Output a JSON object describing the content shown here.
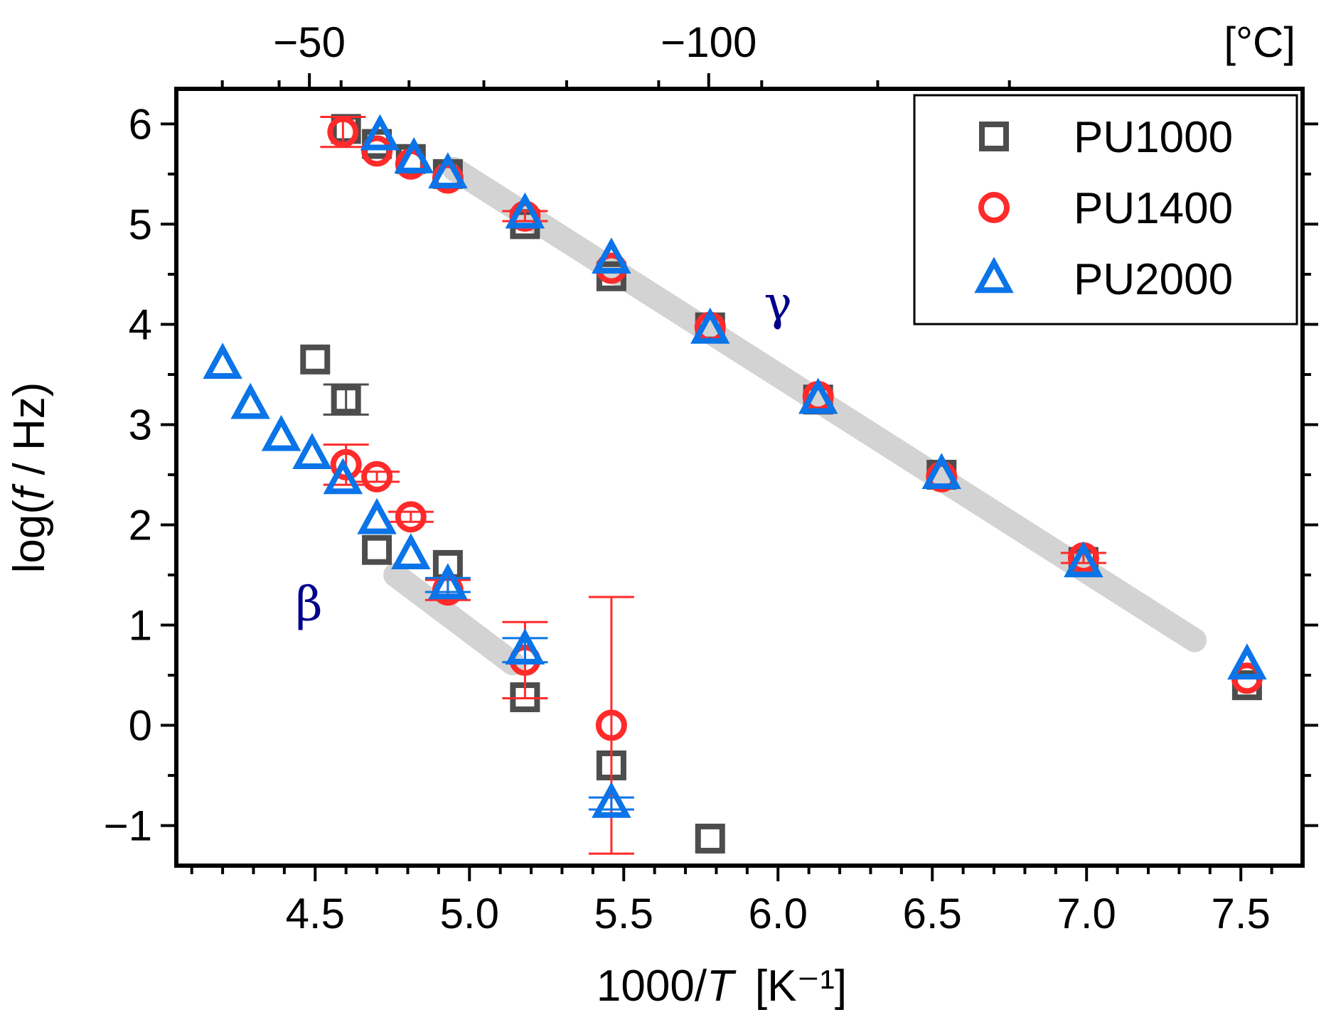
{
  "chart_data": {
    "type": "scatter",
    "xlabel": "1000/T  [K⁻¹]",
    "xlabel_parts": {
      "prefix": "1000/",
      "var": "T",
      "unit": "[K⁻¹]"
    },
    "ylabel": "log(f / Hz)",
    "ylabel_parts": {
      "prefix": "log(",
      "var": "f",
      "suffix": " / Hz)"
    },
    "top_axis_unit": "[°C]",
    "top_axis_ticks": [
      {
        "label": "−50",
        "value_c": -50
      },
      {
        "label": "−100",
        "value_c": -100
      }
    ],
    "x_ticks": [
      {
        "value": 4.5,
        "label": "4.5"
      },
      {
        "value": 5.0,
        "label": "5.0"
      },
      {
        "value": 5.5,
        "label": "5.5"
      },
      {
        "value": 6.0,
        "label": "6.0"
      },
      {
        "value": 6.5,
        "label": "6.5"
      },
      {
        "value": 7.0,
        "label": "7.0"
      },
      {
        "value": 7.5,
        "label": "7.5"
      }
    ],
    "y_ticks": [
      {
        "value": -1,
        "label": "−1"
      },
      {
        "value": 0,
        "label": "0"
      },
      {
        "value": 1,
        "label": "1"
      },
      {
        "value": 2,
        "label": "2"
      },
      {
        "value": 3,
        "label": "3"
      },
      {
        "value": 4,
        "label": "4"
      },
      {
        "value": 5,
        "label": "5"
      },
      {
        "value": 6,
        "label": "6"
      }
    ],
    "xlim": [
      4.05,
      7.7
    ],
    "ylim": [
      -1.4,
      6.35
    ],
    "legend_position": "top-right",
    "colors": {
      "PU1000": "#4d4d4d",
      "PU1400": "#ff2a2a",
      "PU2000": "#0a74e8",
      "guide": "#d3d3d3",
      "annotation": "#00008b"
    },
    "guide_lines": [
      {
        "x": [
          4.95,
          7.35
        ],
        "y": [
          5.55,
          0.85
        ]
      },
      {
        "x": [
          4.76,
          5.14
        ],
        "y": [
          1.5,
          0.62
        ]
      }
    ],
    "annotations": [
      {
        "text": "γ",
        "x": 6.0,
        "y": 4.05
      },
      {
        "text": "β",
        "x": 4.48,
        "y": 1.05
      }
    ],
    "series": [
      {
        "name": "PU1000",
        "marker": "square",
        "points": [
          {
            "x": 4.6,
            "y": 5.95
          },
          {
            "x": 4.7,
            "y": 5.8
          },
          {
            "x": 4.81,
            "y": 5.65
          },
          {
            "x": 4.93,
            "y": 5.5
          },
          {
            "x": 5.18,
            "y": 5.0
          },
          {
            "x": 5.46,
            "y": 4.48
          },
          {
            "x": 5.78,
            "y": 3.97
          },
          {
            "x": 6.13,
            "y": 3.25
          },
          {
            "x": 6.53,
            "y": 2.5
          },
          {
            "x": 6.99,
            "y": 1.63
          },
          {
            "x": 7.52,
            "y": 0.4
          },
          {
            "x": 4.5,
            "y": 3.65
          },
          {
            "x": 4.6,
            "y": 3.25,
            "err": 0.15
          },
          {
            "x": 4.7,
            "y": 1.75
          },
          {
            "x": 4.93,
            "y": 1.6
          },
          {
            "x": 5.18,
            "y": 0.28
          },
          {
            "x": 5.46,
            "y": -0.4
          },
          {
            "x": 5.78,
            "y": -1.13
          }
        ]
      },
      {
        "name": "PU1400",
        "marker": "circle",
        "points": [
          {
            "x": 4.59,
            "y": 5.92,
            "err": 0.15
          },
          {
            "x": 4.7,
            "y": 5.73
          },
          {
            "x": 4.81,
            "y": 5.6
          },
          {
            "x": 4.93,
            "y": 5.46
          },
          {
            "x": 5.18,
            "y": 5.08,
            "err": 0.05
          },
          {
            "x": 5.46,
            "y": 4.56
          },
          {
            "x": 5.78,
            "y": 3.97
          },
          {
            "x": 6.13,
            "y": 3.28
          },
          {
            "x": 6.53,
            "y": 2.48
          },
          {
            "x": 6.99,
            "y": 1.67,
            "err": 0.05
          },
          {
            "x": 7.52,
            "y": 0.47
          },
          {
            "x": 4.6,
            "y": 2.6,
            "err": 0.2
          },
          {
            "x": 4.7,
            "y": 2.48,
            "err": 0.05
          },
          {
            "x": 4.81,
            "y": 2.08,
            "err": 0.05
          },
          {
            "x": 4.93,
            "y": 1.35,
            "err": 0.1
          },
          {
            "x": 5.18,
            "y": 0.65,
            "err": 0.38
          },
          {
            "x": 5.46,
            "y": 0.0,
            "err": 1.28
          }
        ]
      },
      {
        "name": "PU2000",
        "marker": "triangle",
        "points": [
          {
            "x": 4.71,
            "y": 5.88
          },
          {
            "x": 4.82,
            "y": 5.65
          },
          {
            "x": 4.93,
            "y": 5.5
          },
          {
            "x": 5.18,
            "y": 5.1
          },
          {
            "x": 5.46,
            "y": 4.65
          },
          {
            "x": 5.78,
            "y": 3.95
          },
          {
            "x": 6.13,
            "y": 3.25
          },
          {
            "x": 6.53,
            "y": 2.5
          },
          {
            "x": 6.99,
            "y": 1.62
          },
          {
            "x": 7.52,
            "y": 0.6
          },
          {
            "x": 4.2,
            "y": 3.6
          },
          {
            "x": 4.29,
            "y": 3.2
          },
          {
            "x": 4.39,
            "y": 2.88
          },
          {
            "x": 4.49,
            "y": 2.7
          },
          {
            "x": 4.59,
            "y": 2.45
          },
          {
            "x": 4.7,
            "y": 2.05
          },
          {
            "x": 4.81,
            "y": 1.7
          },
          {
            "x": 4.93,
            "y": 1.4,
            "err": 0.07
          },
          {
            "x": 5.18,
            "y": 0.75,
            "err": 0.12
          },
          {
            "x": 5.46,
            "y": -0.78,
            "err": 0.06
          }
        ]
      }
    ]
  }
}
